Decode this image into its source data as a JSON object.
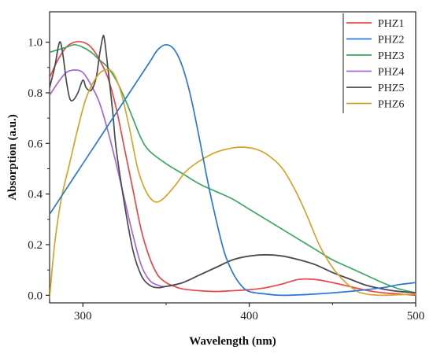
{
  "chart_data": {
    "type": "line",
    "title": "",
    "xlabel": "Wavelength (nm)",
    "ylabel": "Absorption (a.u.)",
    "xlim": [
      280,
      500
    ],
    "ylim": [
      -0.03,
      1.12
    ],
    "x_ticks": [
      300,
      400,
      500
    ],
    "y_ticks": [
      0.0,
      0.2,
      0.4,
      0.6,
      0.8,
      1.0
    ],
    "x_tick_labels": [
      "300",
      "400",
      "500"
    ],
    "y_tick_labels": [
      "0.0",
      "0.2",
      "0.4",
      "0.6",
      "0.8",
      "1.0"
    ],
    "grid": false,
    "legend_position": "top-right",
    "series": [
      {
        "name": "PHZ1",
        "color": "#e8474a",
        "points": [
          [
            280,
            0.86
          ],
          [
            285,
            0.93
          ],
          [
            290,
            0.98
          ],
          [
            295,
            1.0
          ],
          [
            300,
            1.0
          ],
          [
            305,
            0.98
          ],
          [
            310,
            0.93
          ],
          [
            315,
            0.86
          ],
          [
            320,
            0.74
          ],
          [
            325,
            0.58
          ],
          [
            330,
            0.42
          ],
          [
            335,
            0.26
          ],
          [
            340,
            0.15
          ],
          [
            345,
            0.08
          ],
          [
            350,
            0.05
          ],
          [
            355,
            0.035
          ],
          [
            360,
            0.025
          ],
          [
            370,
            0.018
          ],
          [
            380,
            0.015
          ],
          [
            390,
            0.018
          ],
          [
            400,
            0.022
          ],
          [
            410,
            0.03
          ],
          [
            420,
            0.045
          ],
          [
            430,
            0.063
          ],
          [
            440,
            0.062
          ],
          [
            450,
            0.05
          ],
          [
            460,
            0.035
          ],
          [
            470,
            0.02
          ],
          [
            480,
            0.01
          ],
          [
            490,
            0.005
          ],
          [
            500,
            0.0
          ]
        ]
      },
      {
        "name": "PHZ2",
        "color": "#2b77d6",
        "points": [
          [
            280,
            0.32
          ],
          [
            290,
            0.42
          ],
          [
            300,
            0.52
          ],
          [
            310,
            0.62
          ],
          [
            320,
            0.72
          ],
          [
            330,
            0.82
          ],
          [
            340,
            0.92
          ],
          [
            345,
            0.97
          ],
          [
            350,
            0.99
          ],
          [
            355,
            0.97
          ],
          [
            360,
            0.9
          ],
          [
            365,
            0.78
          ],
          [
            370,
            0.62
          ],
          [
            375,
            0.45
          ],
          [
            380,
            0.3
          ],
          [
            385,
            0.17
          ],
          [
            390,
            0.09
          ],
          [
            395,
            0.04
          ],
          [
            400,
            0.015
          ],
          [
            410,
            0.005
          ],
          [
            420,
            0.0
          ],
          [
            440,
            0.005
          ],
          [
            460,
            0.015
          ],
          [
            480,
            0.03
          ],
          [
            490,
            0.042
          ],
          [
            500,
            0.05
          ]
        ]
      },
      {
        "name": "PHZ3",
        "color": "#3aa860",
        "points": [
          [
            280,
            0.96
          ],
          [
            285,
            0.97
          ],
          [
            290,
            0.98
          ],
          [
            295,
            0.99
          ],
          [
            300,
            0.98
          ],
          [
            305,
            0.96
          ],
          [
            310,
            0.93
          ],
          [
            315,
            0.9
          ],
          [
            320,
            0.85
          ],
          [
            325,
            0.78
          ],
          [
            330,
            0.7
          ],
          [
            335,
            0.62
          ],
          [
            340,
            0.57
          ],
          [
            350,
            0.52
          ],
          [
            360,
            0.48
          ],
          [
            370,
            0.44
          ],
          [
            380,
            0.41
          ],
          [
            390,
            0.38
          ],
          [
            400,
            0.34
          ],
          [
            410,
            0.3
          ],
          [
            420,
            0.26
          ],
          [
            430,
            0.22
          ],
          [
            440,
            0.18
          ],
          [
            450,
            0.14
          ],
          [
            460,
            0.11
          ],
          [
            470,
            0.08
          ],
          [
            480,
            0.05
          ],
          [
            490,
            0.025
          ],
          [
            500,
            0.01
          ]
        ]
      },
      {
        "name": "PHZ4",
        "color": "#a667d8",
        "points": [
          [
            280,
            0.79
          ],
          [
            285,
            0.84
          ],
          [
            290,
            0.88
          ],
          [
            295,
            0.89
          ],
          [
            300,
            0.88
          ],
          [
            305,
            0.83
          ],
          [
            310,
            0.76
          ],
          [
            315,
            0.65
          ],
          [
            320,
            0.52
          ],
          [
            325,
            0.38
          ],
          [
            330,
            0.24
          ],
          [
            335,
            0.12
          ],
          [
            340,
            0.06
          ],
          [
            345,
            0.04
          ],
          [
            350,
            0.035
          ],
          [
            360,
            0.05
          ],
          [
            370,
            0.08
          ],
          [
            380,
            0.11
          ],
          [
            390,
            0.14
          ],
          [
            400,
            0.155
          ],
          [
            410,
            0.16
          ],
          [
            420,
            0.155
          ],
          [
            430,
            0.14
          ],
          [
            440,
            0.12
          ],
          [
            450,
            0.09
          ],
          [
            460,
            0.065
          ],
          [
            470,
            0.04
          ],
          [
            480,
            0.025
          ],
          [
            490,
            0.015
          ],
          [
            500,
            0.01
          ]
        ]
      },
      {
        "name": "PHZ5",
        "color": "#4a4a4a",
        "points": [
          [
            280,
            0.82
          ],
          [
            283,
            0.9
          ],
          [
            286,
            1.0
          ],
          [
            288,
            0.95
          ],
          [
            290,
            0.85
          ],
          [
            292,
            0.78
          ],
          [
            294,
            0.77
          ],
          [
            297,
            0.8
          ],
          [
            300,
            0.85
          ],
          [
            302,
            0.82
          ],
          [
            305,
            0.81
          ],
          [
            308,
            0.86
          ],
          [
            310,
            0.95
          ],
          [
            312,
            1.02
          ],
          [
            313,
            1.01
          ],
          [
            315,
            0.9
          ],
          [
            318,
            0.72
          ],
          [
            320,
            0.58
          ],
          [
            325,
            0.36
          ],
          [
            330,
            0.18
          ],
          [
            335,
            0.08
          ],
          [
            340,
            0.04
          ],
          [
            345,
            0.03
          ],
          [
            350,
            0.035
          ],
          [
            360,
            0.05
          ],
          [
            370,
            0.08
          ],
          [
            380,
            0.11
          ],
          [
            390,
            0.14
          ],
          [
            400,
            0.155
          ],
          [
            410,
            0.16
          ],
          [
            420,
            0.155
          ],
          [
            430,
            0.14
          ],
          [
            440,
            0.12
          ],
          [
            450,
            0.09
          ],
          [
            460,
            0.065
          ],
          [
            470,
            0.04
          ],
          [
            480,
            0.025
          ],
          [
            490,
            0.015
          ],
          [
            500,
            0.01
          ]
        ]
      },
      {
        "name": "PHZ6",
        "color": "#d4a52c",
        "points": [
          [
            280,
            -0.01
          ],
          [
            283,
            0.2
          ],
          [
            287,
            0.38
          ],
          [
            292,
            0.52
          ],
          [
            297,
            0.66
          ],
          [
            302,
            0.78
          ],
          [
            308,
            0.86
          ],
          [
            313,
            0.89
          ],
          [
            318,
            0.88
          ],
          [
            323,
            0.8
          ],
          [
            328,
            0.66
          ],
          [
            333,
            0.5
          ],
          [
            338,
            0.41
          ],
          [
            343,
            0.37
          ],
          [
            348,
            0.38
          ],
          [
            355,
            0.43
          ],
          [
            362,
            0.49
          ],
          [
            370,
            0.53
          ],
          [
            380,
            0.565
          ],
          [
            390,
            0.582
          ],
          [
            397,
            0.585
          ],
          [
            405,
            0.575
          ],
          [
            412,
            0.55
          ],
          [
            420,
            0.5
          ],
          [
            428,
            0.41
          ],
          [
            435,
            0.31
          ],
          [
            442,
            0.2
          ],
          [
            450,
            0.11
          ],
          [
            458,
            0.05
          ],
          [
            465,
            0.015
          ],
          [
            472,
            0.003
          ],
          [
            480,
            0.0
          ],
          [
            490,
            0.002
          ],
          [
            500,
            0.005
          ]
        ]
      }
    ]
  }
}
